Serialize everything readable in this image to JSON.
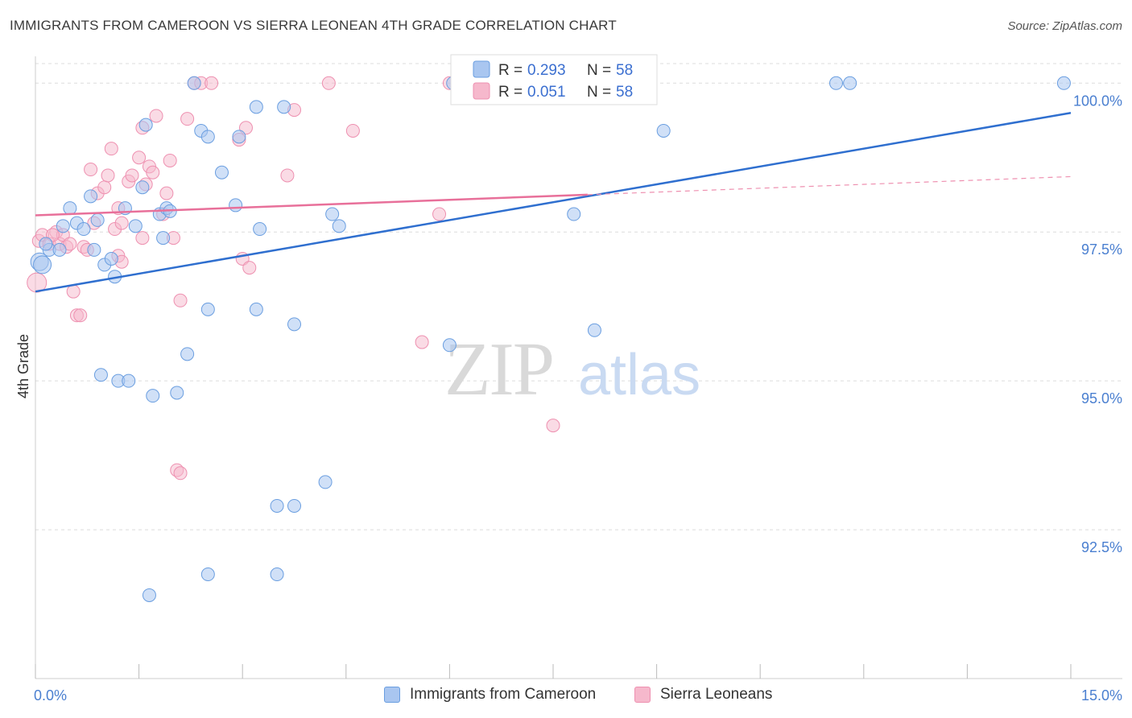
{
  "header": {
    "title": "IMMIGRANTS FROM CAMEROON VS SIERRA LEONEAN 4TH GRADE CORRELATION CHART",
    "source": "Source: ZipAtlas.com"
  },
  "watermark": {
    "zip": "ZIP",
    "atlas": "atlas"
  },
  "colors": {
    "blue_fill": "#a9c6f0",
    "blue_stroke": "#6a9ee0",
    "blue_line": "#2f6fcf",
    "pink_fill": "#f6b8cc",
    "pink_stroke": "#ee90b0",
    "pink_line": "#e8709a",
    "tick_text": "#4a7fd0"
  },
  "legend_box": {
    "rows": [
      {
        "series": "blue",
        "r_label": "R =",
        "r_value": "0.293",
        "n_label": "N =",
        "n_value": "58"
      },
      {
        "series": "pink",
        "r_label": "R =",
        "r_value": "0.051",
        "n_label": "N =",
        "n_value": "58"
      }
    ]
  },
  "bottom_legend": {
    "items": [
      {
        "series": "blue",
        "label": "Immigrants from Cameroon"
      },
      {
        "series": "pink",
        "label": "Sierra Leoneans"
      }
    ]
  },
  "chart_data": {
    "type": "scatter",
    "title": "IMMIGRANTS FROM CAMEROON VS SIERRA LEONEAN 4TH GRADE CORRELATION CHART",
    "xlabel": "",
    "ylabel": "4th Grade",
    "xlim": [
      0,
      15
    ],
    "ylim": [
      90.0,
      100.45
    ],
    "x_tick_labels": [
      {
        "value": 0,
        "label": "0.0%"
      },
      {
        "value": 15,
        "label": "15.0%"
      }
    ],
    "x_minor_ticks": [
      0,
      1.5,
      3.0,
      4.5,
      6.0,
      7.5,
      9.0,
      10.5,
      12.0,
      13.5,
      15.0
    ],
    "y_ticks": [
      {
        "value": 100.0,
        "label": "100.0%"
      },
      {
        "value": 97.5,
        "label": "97.5%"
      },
      {
        "value": 95.0,
        "label": "95.0%"
      },
      {
        "value": 92.5,
        "label": "92.5%"
      }
    ],
    "grid": "horizontal dashed",
    "legend_position": "top-center",
    "series": [
      {
        "name": "Immigrants from Cameroon",
        "color": "#a9c6f0",
        "r": 0.293,
        "n": 58,
        "trend": {
          "x": [
            0,
            15
          ],
          "y": [
            96.5,
            99.5
          ],
          "dashed_from": null
        },
        "points": [
          [
            0.06,
            97.0
          ],
          [
            0.1,
            96.95
          ],
          [
            0.2,
            97.2
          ],
          [
            0.35,
            97.2
          ],
          [
            0.4,
            97.6
          ],
          [
            0.5,
            97.9
          ],
          [
            0.6,
            97.65
          ],
          [
            0.7,
            97.55
          ],
          [
            0.8,
            98.1
          ],
          [
            0.9,
            97.7
          ],
          [
            0.85,
            97.2
          ],
          [
            1.0,
            96.95
          ],
          [
            1.1,
            97.05
          ],
          [
            1.15,
            96.75
          ],
          [
            1.3,
            97.9
          ],
          [
            1.45,
            97.6
          ],
          [
            1.55,
            98.25
          ],
          [
            1.6,
            99.3
          ],
          [
            1.8,
            97.8
          ],
          [
            1.85,
            97.4
          ],
          [
            1.9,
            97.9
          ],
          [
            1.95,
            97.85
          ],
          [
            2.3,
            100.0
          ],
          [
            2.4,
            99.2
          ],
          [
            2.5,
            99.1
          ],
          [
            2.7,
            98.5
          ],
          [
            2.9,
            97.95
          ],
          [
            2.95,
            99.1
          ],
          [
            3.2,
            99.6
          ],
          [
            3.6,
            99.6
          ],
          [
            3.25,
            97.55
          ],
          [
            4.3,
            97.8
          ],
          [
            4.4,
            97.6
          ],
          [
            2.5,
            96.2
          ],
          [
            3.2,
            96.2
          ],
          [
            3.75,
            95.95
          ],
          [
            2.2,
            95.45
          ],
          [
            0.95,
            95.1
          ],
          [
            1.2,
            95.0
          ],
          [
            1.35,
            95.0
          ],
          [
            1.7,
            94.75
          ],
          [
            2.05,
            94.8
          ],
          [
            6.0,
            95.6
          ],
          [
            6.05,
            100.0
          ],
          [
            7.8,
            97.8
          ],
          [
            8.1,
            95.85
          ],
          [
            8.65,
            100.0
          ],
          [
            9.1,
            99.2
          ],
          [
            11.6,
            100.0
          ],
          [
            11.8,
            100.0
          ],
          [
            14.9,
            100.0
          ],
          [
            4.2,
            93.3
          ],
          [
            3.5,
            92.9
          ],
          [
            3.75,
            92.9
          ],
          [
            2.5,
            91.75
          ],
          [
            3.5,
            91.75
          ],
          [
            1.65,
            91.4
          ],
          [
            0.15,
            97.3
          ]
        ]
      },
      {
        "name": "Sierra Leoneans",
        "color": "#f6b8cc",
        "r": 0.051,
        "n": 58,
        "trend": {
          "x": [
            0,
            15
          ],
          "y": [
            97.78,
            98.43
          ],
          "dashed_from": 8.0
        },
        "points": [
          [
            0.02,
            96.65
          ],
          [
            0.05,
            97.35
          ],
          [
            0.1,
            97.45
          ],
          [
            0.2,
            97.3
          ],
          [
            0.3,
            97.5
          ],
          [
            0.35,
            97.3
          ],
          [
            0.4,
            97.45
          ],
          [
            0.45,
            97.25
          ],
          [
            0.55,
            96.5
          ],
          [
            0.6,
            96.1
          ],
          [
            0.65,
            96.1
          ],
          [
            0.7,
            97.25
          ],
          [
            0.75,
            97.2
          ],
          [
            0.8,
            98.55
          ],
          [
            0.85,
            97.65
          ],
          [
            0.9,
            98.15
          ],
          [
            1.0,
            98.25
          ],
          [
            1.05,
            98.45
          ],
          [
            1.1,
            98.9
          ],
          [
            1.15,
            97.55
          ],
          [
            1.2,
            97.9
          ],
          [
            1.25,
            97.65
          ],
          [
            1.35,
            98.35
          ],
          [
            1.4,
            98.45
          ],
          [
            1.5,
            98.75
          ],
          [
            1.55,
            99.25
          ],
          [
            1.6,
            98.3
          ],
          [
            1.65,
            98.6
          ],
          [
            1.7,
            98.5
          ],
          [
            1.75,
            99.45
          ],
          [
            1.85,
            97.8
          ],
          [
            1.9,
            98.15
          ],
          [
            1.95,
            98.7
          ],
          [
            2.0,
            97.4
          ],
          [
            2.1,
            96.35
          ],
          [
            2.2,
            99.4
          ],
          [
            2.3,
            100.0
          ],
          [
            2.4,
            100.0
          ],
          [
            2.55,
            100.0
          ],
          [
            2.95,
            99.05
          ],
          [
            3.05,
            99.25
          ],
          [
            3.0,
            97.05
          ],
          [
            3.1,
            96.9
          ],
          [
            3.65,
            98.45
          ],
          [
            3.75,
            99.55
          ],
          [
            4.25,
            100.0
          ],
          [
            4.6,
            99.2
          ],
          [
            5.6,
            95.65
          ],
          [
            5.85,
            97.8
          ],
          [
            6.0,
            100.0
          ],
          [
            7.5,
            94.25
          ],
          [
            2.05,
            93.5
          ],
          [
            2.1,
            93.45
          ],
          [
            1.2,
            97.1
          ],
          [
            1.25,
            97.0
          ],
          [
            1.55,
            97.4
          ],
          [
            0.5,
            97.3
          ],
          [
            0.25,
            97.45
          ]
        ]
      }
    ]
  }
}
